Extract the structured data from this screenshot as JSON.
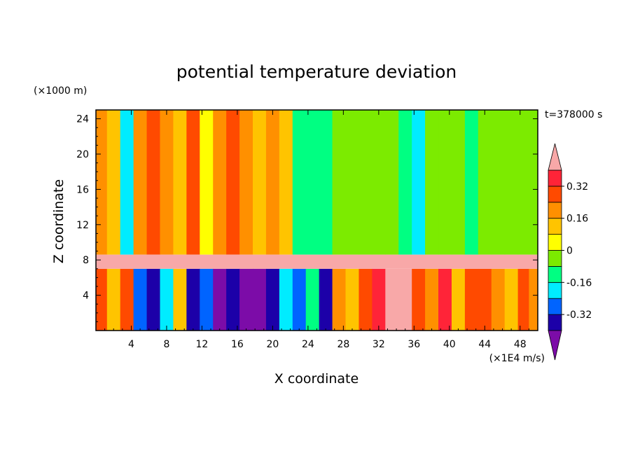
{
  "chart_data": {
    "type": "heatmap",
    "title": "potential temperature deviation",
    "xlabel": "X coordinate",
    "ylabel": "Z coordinate",
    "x_unit": "(×1E4 m/s)",
    "y_unit": "(×1000 m)",
    "time_label": "t=378000 s",
    "xlim": [
      0,
      50
    ],
    "ylim": [
      0,
      25
    ],
    "x_ticks": [
      4,
      8,
      12,
      16,
      20,
      24,
      28,
      32,
      36,
      40,
      44,
      48
    ],
    "y_ticks": [
      4,
      8,
      12,
      16,
      20,
      24
    ],
    "colorbar": {
      "levels": [
        -0.4,
        -0.32,
        -0.24,
        -0.16,
        -0.08,
        0,
        0.08,
        0.16,
        0.24,
        0.32,
        0.4
      ],
      "labels": [
        "0.32",
        "0.16",
        "0",
        "-0.16",
        "-0.32"
      ],
      "label_values": [
        0.32,
        0.16,
        0,
        -0.16,
        -0.32
      ],
      "colors": [
        "#7c0ca8",
        "#1c00a8",
        "#0064ff",
        "#00ecff",
        "#00ff82",
        "#7ceb00",
        "#ffff00",
        "#ffc400",
        "#ff9000",
        "#ff4a00",
        "#ff2438",
        "#f8a8a8"
      ],
      "extend": "both"
    },
    "columns_x": [
      0.5,
      2,
      3.5,
      5,
      6.5,
      8,
      9.5,
      11,
      12.5,
      14,
      15.5,
      17,
      18.5,
      20,
      21.5,
      23,
      24.5,
      26,
      27.5,
      29,
      30.5,
      32,
      33.5,
      35,
      36.5,
      38,
      39.5,
      41,
      42.5,
      44,
      45.5,
      47,
      48.5,
      49.5
    ],
    "upper_layer_values": [
      0.2,
      0.1,
      -0.2,
      0.2,
      0.3,
      0.2,
      0.15,
      0.3,
      0.06,
      0.2,
      0.3,
      0.2,
      0.15,
      0.16,
      0.1,
      -0.12,
      -0.1,
      -0.12,
      -0.08,
      -0.04,
      -0.04,
      -0.06,
      -0.04,
      -0.12,
      -0.2,
      -0.05,
      -0.04,
      -0.03,
      -0.1,
      -0.06,
      -0.05,
      -0.08,
      -0.06,
      -0.05
    ],
    "boundary_layer_z": [
      7,
      8.6
    ],
    "boundary_layer_value": 0.42,
    "lower_layer_values": [
      0.3,
      0.1,
      0.25,
      -0.25,
      -0.4,
      -0.2,
      0.1,
      -0.4,
      -0.3,
      -0.45,
      -0.35,
      -0.45,
      -0.5,
      -0.4,
      -0.2,
      -0.3,
      -0.1,
      -0.4,
      0.2,
      0.1,
      0.3,
      0.35,
      0.4,
      0.42,
      0.3,
      0.2,
      0.35,
      0.1,
      0.25,
      0.3,
      0.2,
      0.15,
      0.3,
      0.2
    ]
  }
}
